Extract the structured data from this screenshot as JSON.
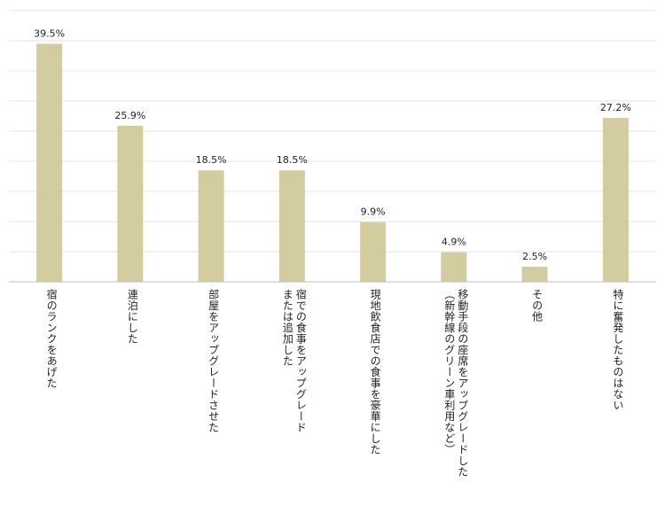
{
  "chart_data": {
    "type": "bar",
    "categories": [
      [
        "宿のランクをあげた"
      ],
      [
        "連泊にした"
      ],
      [
        "部屋をアップグレードさせた"
      ],
      [
        "宿での食事をアップグレード",
        "または追加した"
      ],
      [
        "現地飲食店での食事を豪華にした"
      ],
      [
        "移動手段の座席をアップグレードした",
        "（新幹線のグリーン車利用など）"
      ],
      [
        "その他"
      ],
      [
        "特に奮発したものはない"
      ]
    ],
    "values": [
      39.5,
      25.9,
      18.5,
      18.5,
      9.9,
      4.9,
      2.5,
      27.2
    ],
    "value_labels": [
      "39.5%",
      "25.9%",
      "18.5%",
      "18.5%",
      "9.9%",
      "4.9%",
      "2.5%",
      "27.2%"
    ],
    "ylim": [
      0,
      45
    ],
    "grid": true,
    "legend": "none",
    "colors": {
      "bar": "#d3cc9f",
      "grid": "#e6e6e6",
      "axis": "#bfbfbf",
      "text": "#222222"
    }
  }
}
